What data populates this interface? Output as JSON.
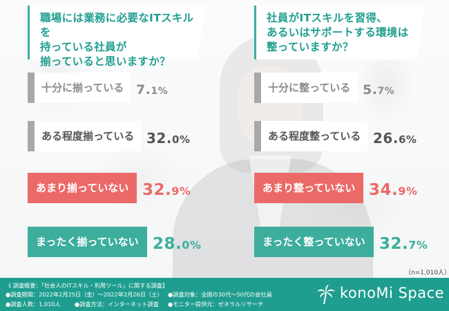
{
  "questions": [
    {
      "text": "職場には業務に必要なITスキルを\n持っている社員が\n揃っていると思いますか？"
    },
    {
      "text": "社員がITスキルを習得、\nあるいはサポートする環境は\n整っていますか？"
    }
  ],
  "chart_data": [
    {
      "type": "bar",
      "categories": [
        "十分に揃っている",
        "ある程度揃っている",
        "あまり揃っていない",
        "まったく揃っていない"
      ],
      "values": [
        7.1,
        32.0,
        32.9,
        28.0
      ],
      "value_labels": [
        {
          "int": "7.",
          "dec": "1%"
        },
        {
          "int": "32.",
          "dec": "0%"
        },
        {
          "int": "32.",
          "dec": "9%"
        },
        {
          "int": "28.",
          "dec": "0%"
        }
      ]
    },
    {
      "type": "bar",
      "categories": [
        "十分に整っている",
        "ある程度整っている",
        "あまり整っていない",
        "まったく整っていない"
      ],
      "values": [
        5.7,
        26.6,
        34.9,
        32.7
      ],
      "value_labels": [
        {
          "int": "5.",
          "dec": "7%"
        },
        {
          "int": "26.",
          "dec": "6%"
        },
        {
          "int": "34.",
          "dec": "9%"
        },
        {
          "int": "32.",
          "dec": "7%"
        }
      ]
    }
  ],
  "colors": {
    "teal": "#3dae9e",
    "red": "#eb6a68",
    "gray": "#a8a8a8",
    "gray_text": "#8c8c8c",
    "dark_text": "#555555"
  },
  "sample_note": "（n=1,010人）",
  "footer": {
    "survey_title": "《 調査概要：「社会人のITスキル・利用ツール」に関する調査】",
    "period": "●調査期間：2022年2月25日（金）～2022年2月26日（土）",
    "count": "●調査人数：1,010人",
    "method": "●調査方法：インターネット調査",
    "target": "●調査対象：全国の30代～50代の会社員",
    "provider": "●モニター提供元：ゼネラルリサーチ",
    "brand": "konoMi Space",
    "brand_icon": "palm-tree-icon"
  }
}
